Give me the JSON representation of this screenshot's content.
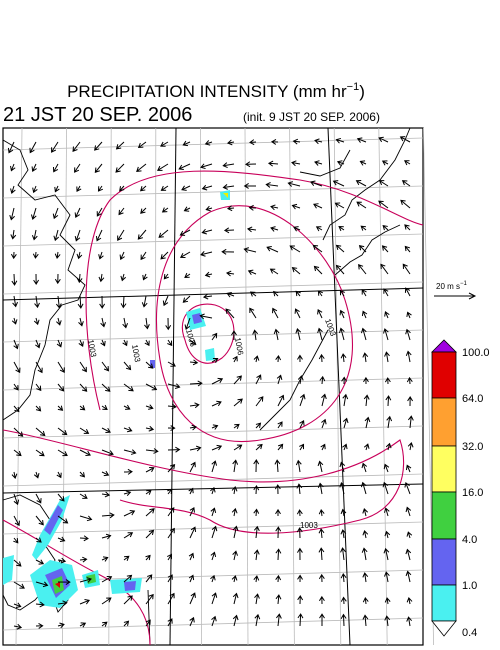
{
  "title": {
    "text": "PRECIPITATION INTENSITY (mm hr",
    "superscript": "−1",
    "close": ")"
  },
  "valid_time": "21 JST 20 SEP. 2006",
  "init_time": "(init. 9 JST 20 SEP. 2006)",
  "wind_reference": {
    "text": "20 m s",
    "superscript": "−1"
  },
  "colorbar": {
    "labels": [
      "100.0",
      "64.0",
      "32.0",
      "16.0",
      "4.0",
      "1.0",
      "0.4"
    ]
  },
  "contour_labels": [
    "1003",
    "1006",
    "1003",
    "1006",
    "1003",
    "1003"
  ]
}
